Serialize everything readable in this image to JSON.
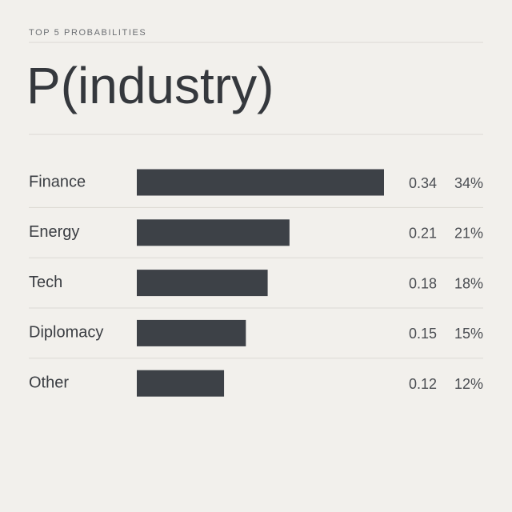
{
  "chart_data": {
    "type": "bar",
    "orientation": "horizontal",
    "subtitle": "TOP 5 PROBABILITIES",
    "title": "P(industry)",
    "categories": [
      "Finance",
      "Energy",
      "Tech",
      "Diplomacy",
      "Other"
    ],
    "values": [
      0.34,
      0.21,
      0.18,
      0.15,
      0.12
    ],
    "value_labels": [
      "34%",
      "21%",
      "18%",
      "15%",
      "12%"
    ],
    "color": "#3d4147"
  }
}
